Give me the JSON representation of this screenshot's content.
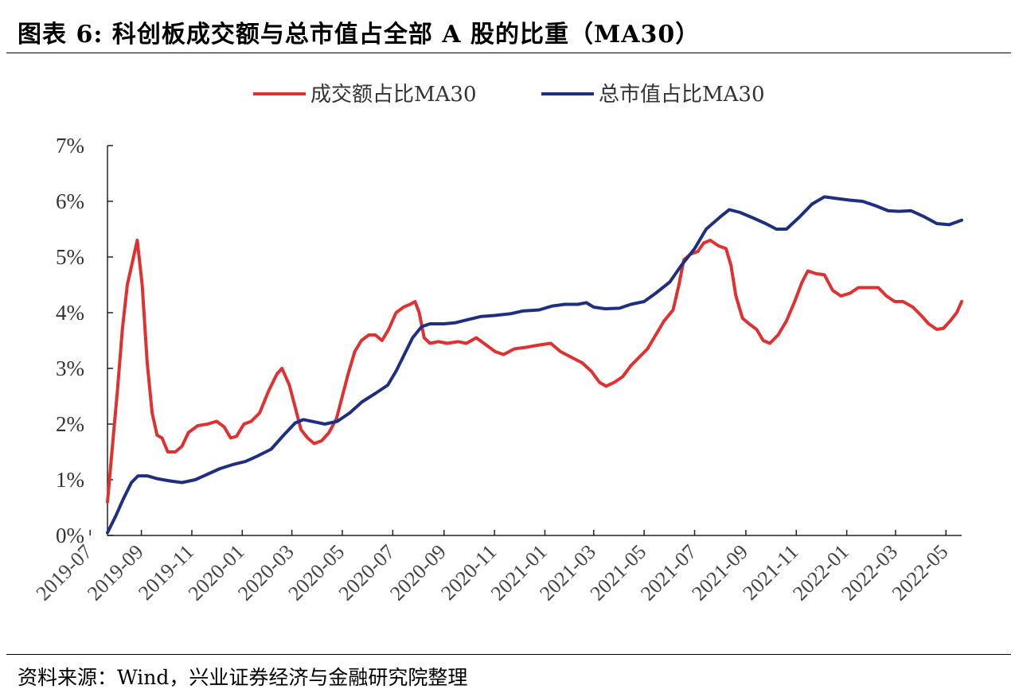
{
  "figure": {
    "title": "图表 6: 科创板成交额与总市值占全部 A 股的比重（MA30）",
    "source": "资料来源：Wind，兴业证券经济与金融研究院整理"
  },
  "chart_data": {
    "type": "line",
    "title": "",
    "xlabel": "",
    "ylabel": "",
    "ylim": [
      0,
      7
    ],
    "y_ticks": [
      "0%",
      "1%",
      "2%",
      "3%",
      "4%",
      "5%",
      "6%",
      "7%"
    ],
    "x_ticks": [
      "2019-07",
      "2019-09",
      "2019-11",
      "2020-01",
      "2020-03",
      "2020-05",
      "2020-07",
      "2020-09",
      "2020-11",
      "2021-01",
      "2021-03",
      "2021-05",
      "2021-07",
      "2021-09",
      "2021-11",
      "2022-01",
      "2022-03",
      "2022-05"
    ],
    "x_range": [
      "2019-07-22",
      "2022-05-20"
    ],
    "grid": false,
    "legend": "top-center",
    "series": [
      {
        "name": "成交额占比MA30",
        "color": "#e03030",
        "points": [
          [
            "2019-07-22",
            0.6
          ],
          [
            "2019-07-28",
            1.6
          ],
          [
            "2019-08-03",
            2.6
          ],
          [
            "2019-08-09",
            3.7
          ],
          [
            "2019-08-15",
            4.5
          ],
          [
            "2019-08-21",
            4.9
          ],
          [
            "2019-08-27",
            5.3
          ],
          [
            "2019-09-02",
            4.5
          ],
          [
            "2019-09-08",
            3.1
          ],
          [
            "2019-09-14",
            2.2
          ],
          [
            "2019-09-20",
            1.8
          ],
          [
            "2019-09-26",
            1.75
          ],
          [
            "2019-10-03",
            1.5
          ],
          [
            "2019-10-12",
            1.5
          ],
          [
            "2019-10-20",
            1.6
          ],
          [
            "2019-10-28",
            1.85
          ],
          [
            "2019-11-08",
            1.97
          ],
          [
            "2019-11-20",
            2.0
          ],
          [
            "2019-12-01",
            2.05
          ],
          [
            "2019-12-10",
            1.95
          ],
          [
            "2019-12-18",
            1.75
          ],
          [
            "2019-12-25",
            1.78
          ],
          [
            "2020-01-03",
            2.0
          ],
          [
            "2020-01-12",
            2.05
          ],
          [
            "2020-01-22",
            2.2
          ],
          [
            "2020-02-02",
            2.6
          ],
          [
            "2020-02-12",
            2.9
          ],
          [
            "2020-02-18",
            3.0
          ],
          [
            "2020-02-27",
            2.7
          ],
          [
            "2020-03-05",
            2.3
          ],
          [
            "2020-03-12",
            1.9
          ],
          [
            "2020-03-20",
            1.75
          ],
          [
            "2020-03-28",
            1.65
          ],
          [
            "2020-04-06",
            1.7
          ],
          [
            "2020-04-15",
            1.85
          ],
          [
            "2020-04-24",
            2.1
          ],
          [
            "2020-05-01",
            2.5
          ],
          [
            "2020-05-08",
            2.9
          ],
          [
            "2020-05-16",
            3.3
          ],
          [
            "2020-05-24",
            3.5
          ],
          [
            "2020-06-02",
            3.6
          ],
          [
            "2020-06-10",
            3.6
          ],
          [
            "2020-06-18",
            3.5
          ],
          [
            "2020-06-26",
            3.7
          ],
          [
            "2020-07-05",
            4.0
          ],
          [
            "2020-07-14",
            4.1
          ],
          [
            "2020-07-22",
            4.15
          ],
          [
            "2020-07-28",
            4.2
          ],
          [
            "2020-08-02",
            4.0
          ],
          [
            "2020-08-08",
            3.55
          ],
          [
            "2020-08-15",
            3.45
          ],
          [
            "2020-08-25",
            3.48
          ],
          [
            "2020-09-05",
            3.45
          ],
          [
            "2020-09-18",
            3.48
          ],
          [
            "2020-09-28",
            3.45
          ],
          [
            "2020-10-10",
            3.55
          ],
          [
            "2020-10-22",
            3.42
          ],
          [
            "2020-11-02",
            3.3
          ],
          [
            "2020-11-12",
            3.25
          ],
          [
            "2020-11-25",
            3.35
          ],
          [
            "2020-12-10",
            3.38
          ],
          [
            "2020-12-25",
            3.42
          ],
          [
            "2021-01-08",
            3.45
          ],
          [
            "2021-01-20",
            3.3
          ],
          [
            "2021-02-02",
            3.2
          ],
          [
            "2021-02-15",
            3.1
          ],
          [
            "2021-02-26",
            2.95
          ],
          [
            "2021-03-08",
            2.75
          ],
          [
            "2021-03-16",
            2.68
          ],
          [
            "2021-03-26",
            2.75
          ],
          [
            "2021-04-05",
            2.85
          ],
          [
            "2021-04-15",
            3.05
          ],
          [
            "2021-04-25",
            3.2
          ],
          [
            "2021-05-05",
            3.35
          ],
          [
            "2021-05-15",
            3.6
          ],
          [
            "2021-05-25",
            3.85
          ],
          [
            "2021-06-05",
            4.05
          ],
          [
            "2021-06-12",
            4.5
          ],
          [
            "2021-06-18",
            4.95
          ],
          [
            "2021-06-26",
            5.05
          ],
          [
            "2021-07-05",
            5.1
          ],
          [
            "2021-07-12",
            5.25
          ],
          [
            "2021-07-20",
            5.3
          ],
          [
            "2021-07-30",
            5.2
          ],
          [
            "2021-08-08",
            5.15
          ],
          [
            "2021-08-14",
            4.85
          ],
          [
            "2021-08-20",
            4.3
          ],
          [
            "2021-08-28",
            3.9
          ],
          [
            "2021-09-05",
            3.8
          ],
          [
            "2021-09-14",
            3.7
          ],
          [
            "2021-09-22",
            3.5
          ],
          [
            "2021-09-30",
            3.45
          ],
          [
            "2021-10-10",
            3.6
          ],
          [
            "2021-10-20",
            3.85
          ],
          [
            "2021-10-30",
            4.2
          ],
          [
            "2021-11-08",
            4.55
          ],
          [
            "2021-11-15",
            4.75
          ],
          [
            "2021-11-25",
            4.7
          ],
          [
            "2021-12-05",
            4.68
          ],
          [
            "2021-12-15",
            4.4
          ],
          [
            "2021-12-25",
            4.3
          ],
          [
            "2022-01-05",
            4.35
          ],
          [
            "2022-01-15",
            4.45
          ],
          [
            "2022-01-25",
            4.45
          ],
          [
            "2022-02-08",
            4.45
          ],
          [
            "2022-02-18",
            4.3
          ],
          [
            "2022-02-28",
            4.2
          ],
          [
            "2022-03-10",
            4.2
          ],
          [
            "2022-03-22",
            4.1
          ],
          [
            "2022-04-01",
            3.95
          ],
          [
            "2022-04-10",
            3.8
          ],
          [
            "2022-04-20",
            3.7
          ],
          [
            "2022-04-28",
            3.72
          ],
          [
            "2022-05-06",
            3.85
          ],
          [
            "2022-05-14",
            4.0
          ],
          [
            "2022-05-20",
            4.2
          ]
        ]
      },
      {
        "name": "总市值占比MA30",
        "color": "#1f2f80",
        "points": [
          [
            "2019-07-22",
            0.05
          ],
          [
            "2019-08-01",
            0.35
          ],
          [
            "2019-08-10",
            0.65
          ],
          [
            "2019-08-20",
            0.95
          ],
          [
            "2019-08-28",
            1.07
          ],
          [
            "2019-09-08",
            1.07
          ],
          [
            "2019-09-20",
            1.02
          ],
          [
            "2019-10-05",
            0.98
          ],
          [
            "2019-10-20",
            0.95
          ],
          [
            "2019-11-05",
            1.0
          ],
          [
            "2019-11-20",
            1.1
          ],
          [
            "2019-12-05",
            1.2
          ],
          [
            "2019-12-20",
            1.27
          ],
          [
            "2020-01-05",
            1.33
          ],
          [
            "2020-01-20",
            1.43
          ],
          [
            "2020-02-05",
            1.55
          ],
          [
            "2020-02-20",
            1.8
          ],
          [
            "2020-03-05",
            2.02
          ],
          [
            "2020-03-15",
            2.08
          ],
          [
            "2020-03-28",
            2.04
          ],
          [
            "2020-04-10",
            2.0
          ],
          [
            "2020-04-25",
            2.05
          ],
          [
            "2020-05-10",
            2.2
          ],
          [
            "2020-05-25",
            2.4
          ],
          [
            "2020-06-10",
            2.55
          ],
          [
            "2020-06-25",
            2.7
          ],
          [
            "2020-07-05",
            2.95
          ],
          [
            "2020-07-15",
            3.25
          ],
          [
            "2020-07-25",
            3.55
          ],
          [
            "2020-08-05",
            3.75
          ],
          [
            "2020-08-15",
            3.8
          ],
          [
            "2020-09-01",
            3.8
          ],
          [
            "2020-09-15",
            3.82
          ],
          [
            "2020-10-01",
            3.88
          ],
          [
            "2020-10-15",
            3.93
          ],
          [
            "2020-11-01",
            3.95
          ],
          [
            "2020-11-20",
            3.98
          ],
          [
            "2020-12-05",
            4.03
          ],
          [
            "2020-12-25",
            4.05
          ],
          [
            "2021-01-10",
            4.12
          ],
          [
            "2021-01-25",
            4.15
          ],
          [
            "2021-02-10",
            4.15
          ],
          [
            "2021-02-20",
            4.18
          ],
          [
            "2021-03-01",
            4.1
          ],
          [
            "2021-03-15",
            4.07
          ],
          [
            "2021-04-01",
            4.08
          ],
          [
            "2021-04-15",
            4.15
          ],
          [
            "2021-05-01",
            4.2
          ],
          [
            "2021-05-15",
            4.35
          ],
          [
            "2021-06-01",
            4.55
          ],
          [
            "2021-06-15",
            4.85
          ],
          [
            "2021-07-01",
            5.15
          ],
          [
            "2021-07-15",
            5.5
          ],
          [
            "2021-08-01",
            5.72
          ],
          [
            "2021-08-12",
            5.85
          ],
          [
            "2021-08-25",
            5.8
          ],
          [
            "2021-09-10",
            5.7
          ],
          [
            "2021-09-25",
            5.6
          ],
          [
            "2021-10-08",
            5.5
          ],
          [
            "2021-10-20",
            5.5
          ],
          [
            "2021-11-05",
            5.72
          ],
          [
            "2021-11-20",
            5.95
          ],
          [
            "2021-12-05",
            6.08
          ],
          [
            "2021-12-20",
            6.05
          ],
          [
            "2022-01-05",
            6.02
          ],
          [
            "2022-01-20",
            6.0
          ],
          [
            "2022-02-05",
            5.92
          ],
          [
            "2022-02-20",
            5.83
          ],
          [
            "2022-03-05",
            5.82
          ],
          [
            "2022-03-20",
            5.83
          ],
          [
            "2022-04-05",
            5.72
          ],
          [
            "2022-04-20",
            5.6
          ],
          [
            "2022-05-05",
            5.58
          ],
          [
            "2022-05-20",
            5.66
          ]
        ]
      }
    ]
  }
}
